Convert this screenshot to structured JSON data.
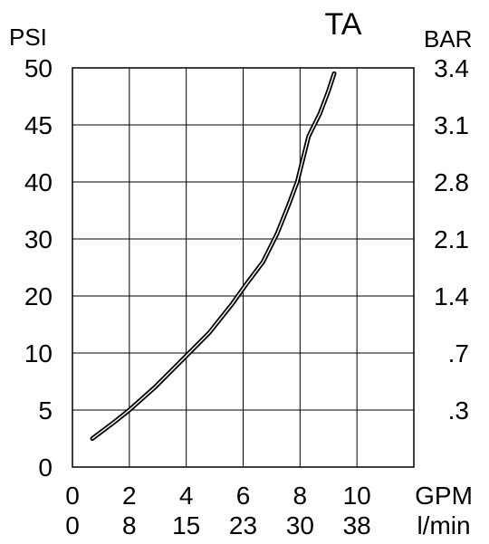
{
  "chart_data": {
    "type": "line",
    "title": "TA",
    "y_left_label": "PSI",
    "y_right_label": "BAR",
    "x_label_gpm": "GPM",
    "x_label_lmin": "l/min",
    "y_left_ticks": [
      "0",
      "5",
      "10",
      "20",
      "30",
      "40",
      "45",
      "50"
    ],
    "y_right_ticks": [
      ".3",
      ".7",
      "1.4",
      "2.1",
      "2.8",
      "3.1",
      "3.4"
    ],
    "x_gpm_ticks": [
      "0",
      "2",
      "4",
      "6",
      "8",
      "10"
    ],
    "x_lmin_ticks": [
      "0",
      "8",
      "15",
      "23",
      "30",
      "38"
    ],
    "grid": true,
    "axis_scale": "categorical (tick rows equally spaced)",
    "series": [
      {
        "x_gpm": [
          0.7,
          1.5,
          2.0,
          2.9,
          3.5,
          4.1,
          4.8,
          5.6,
          6.1,
          6.7,
          7.2,
          7.6,
          7.9,
          8.3,
          8.7,
          9.0,
          9.2
        ],
        "y_psi": [
          2.5,
          4.0,
          5.0,
          7.0,
          8.5,
          10.0,
          13.5,
          18.5,
          22.0,
          26.0,
          31.0,
          36.0,
          40.0,
          44.0,
          46.0,
          48.0,
          49.5
        ]
      }
    ]
  }
}
